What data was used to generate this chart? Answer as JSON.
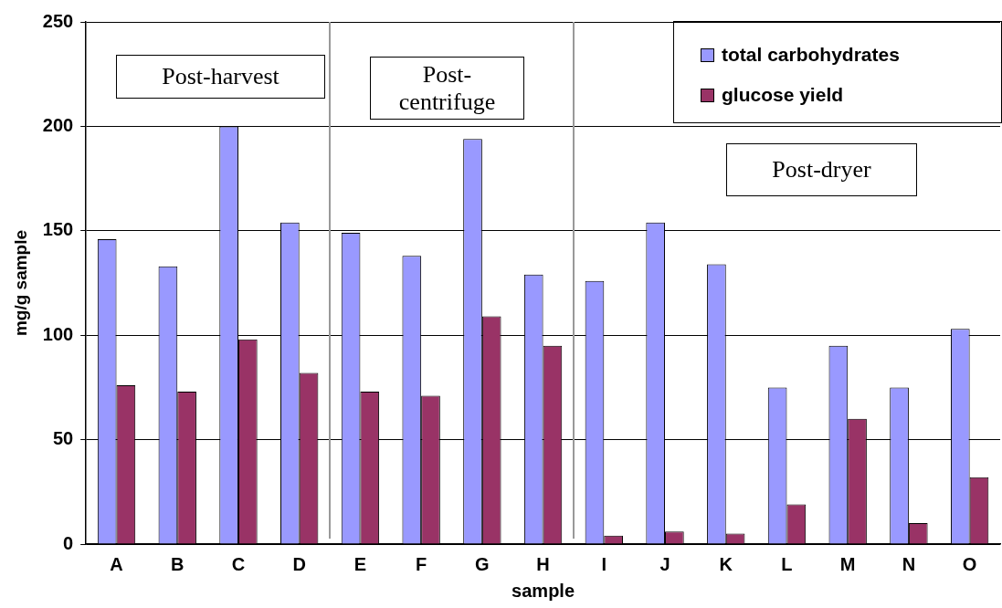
{
  "chart_data": {
    "type": "bar",
    "xlabel": "sample",
    "ylabel": "mg/g sample",
    "categories": [
      "A",
      "B",
      "C",
      "D",
      "E",
      "F",
      "G",
      "H",
      "I",
      "J",
      "K",
      "L",
      "M",
      "N",
      "O"
    ],
    "series": [
      {
        "name": "total carbohydrates",
        "color": "#9999ff",
        "values": [
          146,
          133,
          200,
          154,
          149,
          138,
          194,
          129,
          126,
          154,
          134,
          75,
          95,
          75,
          103
        ]
      },
      {
        "name": "glucose yield",
        "color": "#993366",
        "values": [
          76,
          73,
          98,
          82,
          73,
          71,
          109,
          95,
          4,
          6,
          5,
          19,
          60,
          10,
          32
        ]
      }
    ],
    "ylim": [
      0,
      250
    ],
    "yticks": [
      0,
      50,
      100,
      150,
      200,
      250
    ],
    "grid": "y",
    "legend": "top right",
    "annotations": [
      "Post-harvest",
      "Post-\ncentrifuge",
      "Post-dryer"
    ]
  }
}
